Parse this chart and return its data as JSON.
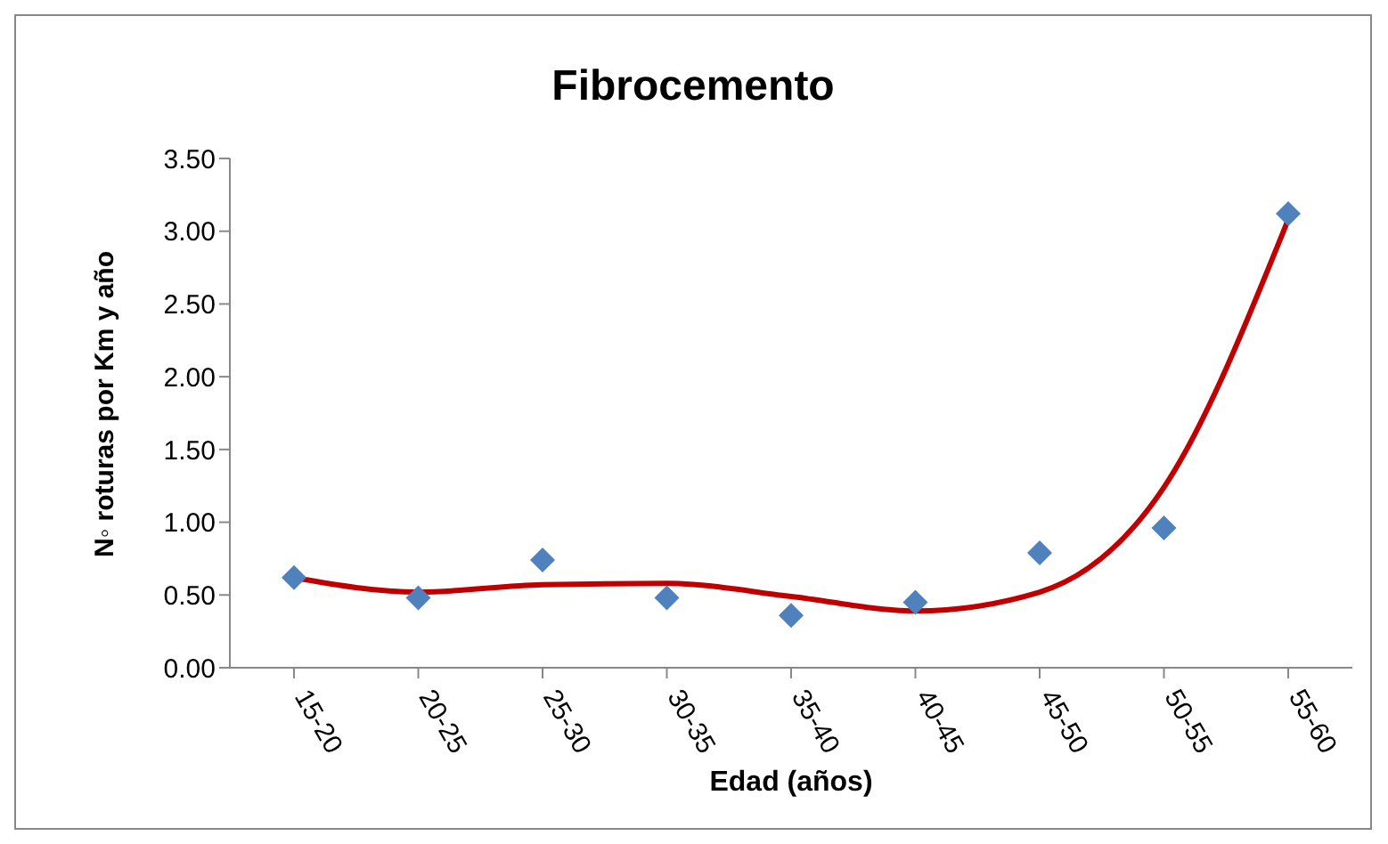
{
  "chart_data": {
    "type": "scatter",
    "title": "Fibrocemento",
    "xlabel": "Edad (años)",
    "ylabel": "N◦ roturas por Km y año",
    "categories": [
      "15-20",
      "20-25",
      "25-30",
      "30-35",
      "35-40",
      "40-45",
      "45-50",
      "50-55",
      "55-60"
    ],
    "series": [
      {
        "color": "#4f81bd",
        "marker": "diamond",
        "values": [
          0.62,
          0.48,
          0.74,
          0.48,
          0.36,
          0.45,
          0.79,
          0.96,
          3.12
        ]
      },
      {
        "type": "line",
        "color": "#c00000",
        "marker": "none",
        "values": [
          0.62,
          0.52,
          0.57,
          0.58,
          0.49,
          0.39,
          0.52,
          1.24,
          3.08
        ]
      }
    ],
    "ylim": [
      0,
      3.5
    ],
    "yticks": [
      {
        "value": 0,
        "label": "0.00"
      },
      {
        "value": 0.5,
        "label": "0.50"
      },
      {
        "value": 1,
        "label": "1.00"
      },
      {
        "value": 1.5,
        "label": "1.50"
      },
      {
        "value": 2,
        "label": "2.00"
      },
      {
        "value": 2.5,
        "label": "2.50"
      },
      {
        "value": 3,
        "label": "3.00"
      },
      {
        "value": 3.5,
        "label": "3.50"
      }
    ],
    "grid": false,
    "legend": false
  }
}
